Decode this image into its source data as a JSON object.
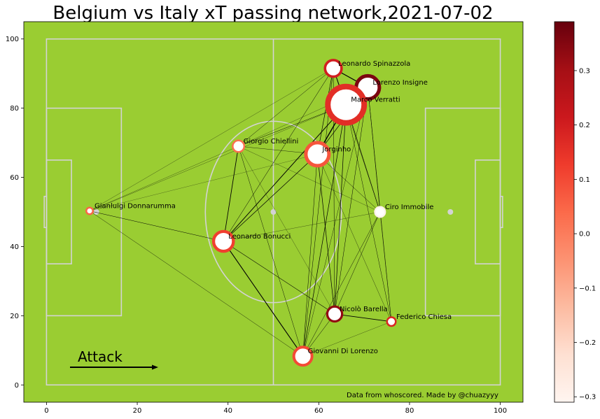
{
  "chart_data": {
    "type": "scatter",
    "title": "Belgium vs Italy xT passing network,2021-07-02",
    "xlim": [
      -5,
      105
    ],
    "ylim": [
      -5,
      105
    ],
    "xticks": [
      0,
      20,
      40,
      60,
      80,
      100
    ],
    "yticks": [
      0,
      20,
      40,
      60,
      80,
      100
    ],
    "grid": false,
    "players": [
      {
        "name": "Leonardo Spinazzola",
        "x": 63.2,
        "y": 91.5,
        "size": 10,
        "xt": 0.2
      },
      {
        "name": "Lorenzo Insigne",
        "x": 70.8,
        "y": 86.0,
        "size": 14,
        "xt": 0.36
      },
      {
        "name": "Marco Verratti",
        "x": 66.0,
        "y": 81.0,
        "size": 22,
        "xt": 0.16
      },
      {
        "name": "Giorgio Chiellini",
        "x": 42.3,
        "y": 69.0,
        "size": 7,
        "xt": 0.03
      },
      {
        "name": "Jorginho",
        "x": 59.7,
        "y": 66.7,
        "size": 14,
        "xt": 0.08
      },
      {
        "name": "Gianluigi Donnarumma",
        "x": 9.5,
        "y": 50.3,
        "size": 3.5,
        "xt": 0.05
      },
      {
        "name": "Ciro Immobile",
        "x": 73.5,
        "y": 50.0,
        "size": 6,
        "xt": -0.3
      },
      {
        "name": "Leonardo Bonucci",
        "x": 39.0,
        "y": 41.5,
        "size": 12,
        "xt": 0.12
      },
      {
        "name": "Nicolò Barella",
        "x": 63.5,
        "y": 20.5,
        "size": 9,
        "xt": 0.33
      },
      {
        "name": "Federico Chiesa",
        "x": 76.0,
        "y": 18.3,
        "size": 5,
        "xt": 0.18
      },
      {
        "name": "Giovanni Di Lorenzo",
        "x": 56.5,
        "y": 8.3,
        "size": 11,
        "xt": 0.1
      }
    ],
    "passes": [
      [
        0,
        1,
        2.2
      ],
      [
        0,
        2,
        1.6
      ],
      [
        0,
        3,
        0.8
      ],
      [
        0,
        4,
        1.2
      ],
      [
        0,
        5,
        0.5
      ],
      [
        0,
        6,
        0.8
      ],
      [
        0,
        7,
        0.9
      ],
      [
        0,
        8,
        0.9
      ],
      [
        0,
        10,
        0.9
      ],
      [
        1,
        2,
        2.0
      ],
      [
        1,
        4,
        1.3
      ],
      [
        1,
        6,
        0.8
      ],
      [
        1,
        8,
        0.9
      ],
      [
        1,
        9,
        0.8
      ],
      [
        1,
        10,
        0.7
      ],
      [
        1,
        3,
        0.5
      ],
      [
        2,
        3,
        0.9
      ],
      [
        2,
        4,
        2.6
      ],
      [
        2,
        5,
        0.5
      ],
      [
        2,
        6,
        1.0
      ],
      [
        2,
        7,
        1.8
      ],
      [
        2,
        8,
        1.3
      ],
      [
        2,
        9,
        0.8
      ],
      [
        2,
        10,
        1.3
      ],
      [
        3,
        4,
        0.7
      ],
      [
        3,
        7,
        1.6
      ],
      [
        3,
        6,
        0.5
      ],
      [
        3,
        10,
        0.8
      ],
      [
        3,
        8,
        0.5
      ],
      [
        3,
        5,
        0.5
      ],
      [
        4,
        5,
        0.4
      ],
      [
        4,
        6,
        0.8
      ],
      [
        4,
        7,
        1.3
      ],
      [
        4,
        8,
        1.3
      ],
      [
        4,
        9,
        0.6
      ],
      [
        4,
        10,
        0.9
      ],
      [
        5,
        7,
        0.9
      ],
      [
        5,
        10,
        0.7
      ],
      [
        6,
        7,
        0.5
      ],
      [
        6,
        8,
        0.8
      ],
      [
        6,
        9,
        0.6
      ],
      [
        6,
        10,
        0.8
      ],
      [
        7,
        8,
        1.0
      ],
      [
        7,
        10,
        2.0
      ],
      [
        8,
        9,
        1.6
      ],
      [
        8,
        10,
        0.9
      ],
      [
        9,
        10,
        0.5
      ]
    ],
    "colorbar": {
      "min": -0.31,
      "max": 0.39,
      "ticks": [
        0.3,
        0.2,
        0.1,
        0.0,
        -0.1,
        -0.2,
        -0.3
      ],
      "tick_labels": [
        "0.3",
        "0.2",
        "0.1",
        "0.0",
        "−0.1",
        "−0.2",
        "−0.3"
      ],
      "colormap": "Reds"
    },
    "annotations": {
      "attack": "Attack",
      "credit": "Data from whoscored. Made by @chuazyyy"
    }
  },
  "colors": {
    "pitch": "#9acd32",
    "lines": "#d3d3d3",
    "pass": "#000000"
  }
}
